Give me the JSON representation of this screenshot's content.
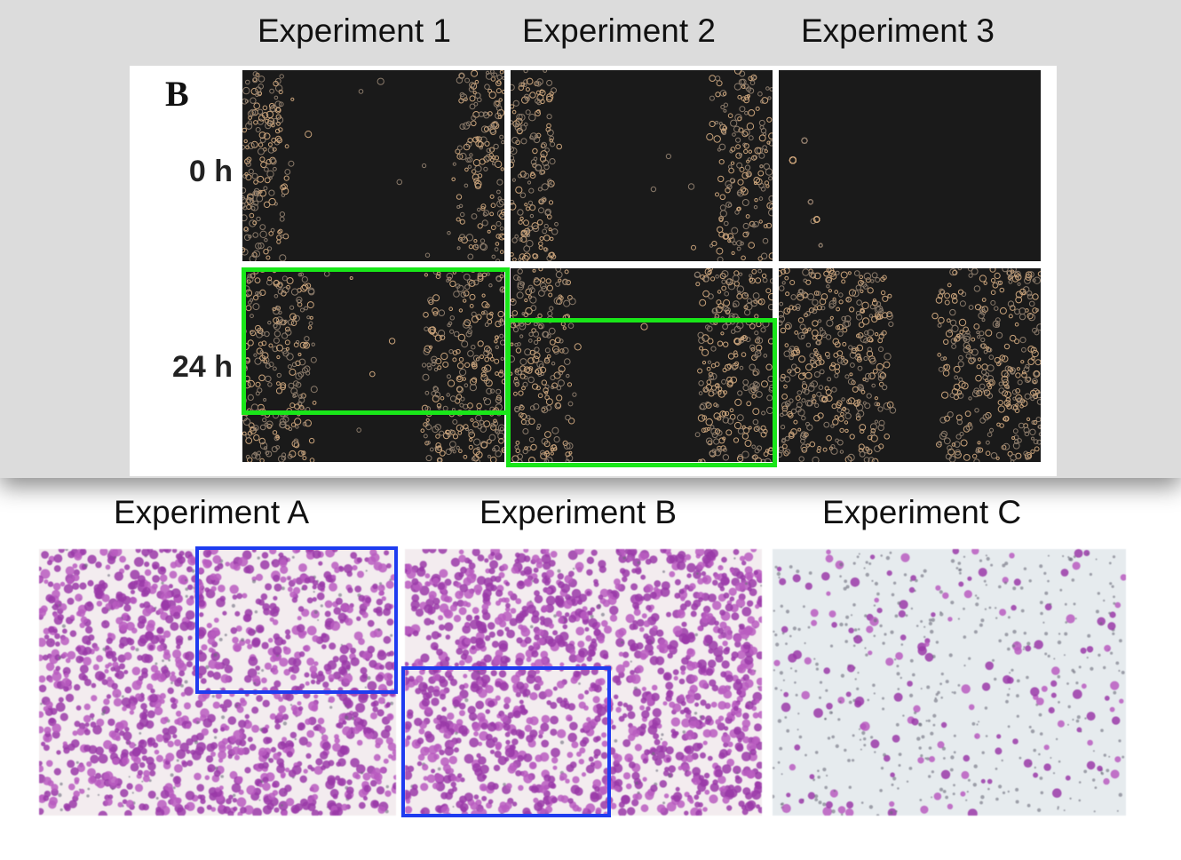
{
  "top": {
    "column_titles": [
      "Experiment 1",
      "Experiment 2",
      "Experiment 3"
    ],
    "panel_letter": "B",
    "row_labels": [
      "0 h",
      "24 h"
    ]
  },
  "bottom": {
    "column_titles": [
      "Experiment A",
      "Experiment B",
      "Experiment C"
    ]
  },
  "colors": {
    "band_background": "#dcdcdc",
    "highlight_green": "#19e619",
    "highlight_blue": "#1e3cf0",
    "cell_tan": "#c8a27a",
    "stain_purple": "#9a3aa8",
    "stain_background": "#f4eef0"
  }
}
